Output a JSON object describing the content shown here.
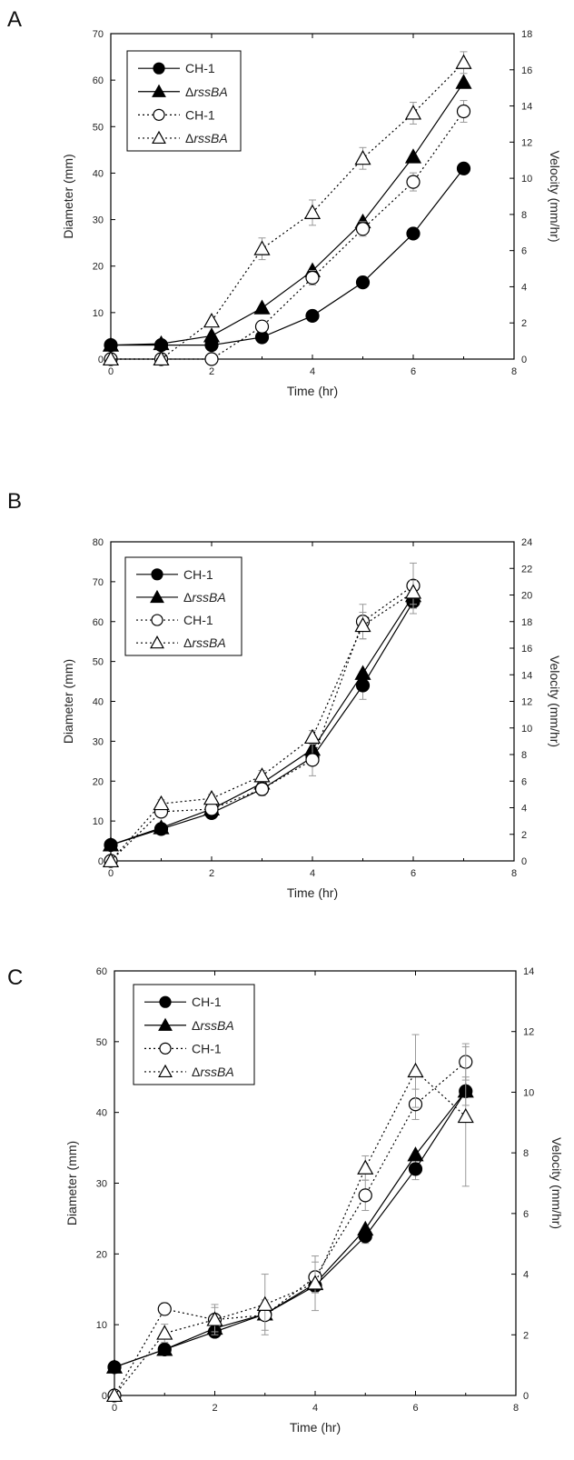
{
  "legend_entries": [
    {
      "label": "CH-1",
      "prefix": "",
      "italic": ""
    },
    {
      "label": "ΔrssBA",
      "prefix": "Δ",
      "italic": "rssBA"
    },
    {
      "label": "CH-1",
      "prefix": "",
      "italic": ""
    },
    {
      "label": "ΔrssBA",
      "prefix": "Δ",
      "italic": "rssBA"
    }
  ],
  "chart_data": [
    {
      "panel": "A",
      "type": "line",
      "xlabel": "Time (hr)",
      "ylabel": "Diameter (mm)",
      "y2label": "Velocity (mm/hr)",
      "xlim": [
        0,
        8
      ],
      "ylim": [
        0,
        70
      ],
      "y2lim": [
        0,
        18
      ],
      "xticks": [
        0,
        2,
        4,
        6,
        8
      ],
      "yticks": [
        0,
        10,
        20,
        30,
        40,
        50,
        60,
        70
      ],
      "y2ticks": [
        0,
        2,
        4,
        6,
        8,
        10,
        12,
        14,
        16,
        18
      ],
      "grid": false,
      "legend_position": "top-left",
      "series": [
        {
          "name": "CH-1",
          "axis": "left",
          "marker": "circle",
          "fill": "filled",
          "line": "solid",
          "x": [
            0,
            1,
            2,
            3,
            4,
            5,
            6,
            7
          ],
          "y": [
            3,
            3,
            3,
            4.7,
            9.3,
            16.5,
            27,
            41
          ]
        },
        {
          "name": "ΔrssBA",
          "axis": "left",
          "marker": "triangle",
          "fill": "filled",
          "line": "solid",
          "x": [
            0,
            1,
            2,
            3,
            4,
            5,
            6,
            7
          ],
          "y": [
            3,
            3.3,
            5,
            11,
            19,
            29.5,
            43.5,
            59.5
          ]
        },
        {
          "name": "CH-1",
          "axis": "right",
          "marker": "circle",
          "fill": "open",
          "line": "dotted",
          "x": [
            0,
            1,
            2,
            3,
            4,
            5,
            6,
            7
          ],
          "y": [
            0,
            0,
            0,
            1.8,
            4.5,
            7.2,
            9.8,
            13.7
          ],
          "err": [
            0,
            0,
            0,
            0.3,
            0.4,
            0.4,
            0.5,
            0.6
          ]
        },
        {
          "name": "ΔrssBA",
          "axis": "right",
          "marker": "triangle",
          "fill": "open",
          "line": "dotted",
          "x": [
            0,
            1,
            2,
            3,
            4,
            5,
            6,
            7
          ],
          "y": [
            0,
            0,
            2.1,
            6.1,
            8.1,
            11.1,
            13.6,
            16.4
          ],
          "err": [
            0,
            0,
            0,
            0.6,
            0.7,
            0.6,
            0.6,
            0.6
          ]
        }
      ]
    },
    {
      "panel": "B",
      "type": "line",
      "xlabel": "Time (hr)",
      "ylabel": "Diameter (mm)",
      "y2label": "Velocity (mm/hr)",
      "xlim": [
        0,
        8
      ],
      "ylim": [
        0,
        80
      ],
      "y2lim": [
        0,
        24
      ],
      "xticks": [
        0,
        2,
        4,
        6,
        8
      ],
      "yticks": [
        0,
        10,
        20,
        30,
        40,
        50,
        60,
        70,
        80
      ],
      "y2ticks": [
        0,
        2,
        4,
        6,
        8,
        10,
        12,
        14,
        16,
        18,
        20,
        22,
        24
      ],
      "grid": false,
      "legend_position": "top-left",
      "series": [
        {
          "name": "CH-1",
          "axis": "left",
          "marker": "circle",
          "fill": "filled",
          "line": "solid",
          "x": [
            0,
            1,
            2,
            3,
            4,
            5,
            6
          ],
          "y": [
            4,
            8,
            12,
            18,
            26,
            44,
            65
          ],
          "err": [
            0,
            0.5,
            0.6,
            1,
            1.5,
            3.5,
            3
          ]
        },
        {
          "name": "ΔrssBA",
          "axis": "left",
          "marker": "triangle",
          "fill": "filled",
          "line": "solid",
          "x": [
            0,
            1,
            2,
            3,
            4,
            5,
            6
          ],
          "y": [
            4,
            8.3,
            13,
            19.5,
            28,
            47,
            66.5
          ]
        },
        {
          "name": "CH-1",
          "axis": "right",
          "marker": "circle",
          "fill": "open",
          "line": "dotted",
          "x": [
            0,
            1,
            2,
            3,
            4,
            5,
            6
          ],
          "y": [
            0,
            3.7,
            3.9,
            5.4,
            7.6,
            18,
            20.7
          ],
          "err": [
            0,
            0.3,
            0.3,
            0.5,
            1.2,
            1.3,
            1.7
          ]
        },
        {
          "name": "ΔrssBA",
          "axis": "right",
          "marker": "triangle",
          "fill": "open",
          "line": "dotted",
          "x": [
            0,
            1,
            2,
            3,
            4,
            5,
            6
          ],
          "y": [
            0,
            4.3,
            4.7,
            6.4,
            9.3,
            17.7,
            20.2
          ],
          "err": [
            0,
            0.3,
            0.3,
            0.4,
            0.5,
            1,
            0.9
          ]
        }
      ]
    },
    {
      "panel": "C",
      "type": "line",
      "xlabel": "Time (hr)",
      "ylabel": "Diameter (mm)",
      "y2label": "Velocity (mm/hr)",
      "xlim": [
        0,
        8
      ],
      "ylim": [
        0,
        60
      ],
      "y2lim": [
        0,
        14
      ],
      "xticks": [
        0,
        2,
        4,
        6,
        8
      ],
      "yticks": [
        0,
        10,
        20,
        30,
        40,
        50,
        60
      ],
      "y2ticks": [
        0,
        2,
        4,
        6,
        8,
        10,
        12,
        14
      ],
      "grid": false,
      "legend_position": "top-left",
      "series": [
        {
          "name": "CH-1",
          "axis": "left",
          "marker": "circle",
          "fill": "filled",
          "line": "solid",
          "x": [
            0,
            1,
            2,
            3,
            4,
            5,
            6,
            7
          ],
          "y": [
            4,
            6.5,
            9,
            11.5,
            15.5,
            22.5,
            32,
            43
          ],
          "err": [
            0,
            0.5,
            0.5,
            0.6,
            1,
            1,
            1.5,
            2
          ]
        },
        {
          "name": "ΔrssBA",
          "axis": "left",
          "marker": "triangle",
          "fill": "filled",
          "line": "solid",
          "x": [
            0,
            1,
            2,
            3,
            4,
            5,
            6,
            7
          ],
          "y": [
            4,
            6.5,
            9.5,
            11.5,
            15.8,
            23.5,
            34,
            43
          ]
        },
        {
          "name": "CH-1",
          "axis": "right",
          "marker": "circle",
          "fill": "open",
          "line": "dotted",
          "x": [
            0,
            1,
            2,
            3,
            4,
            5,
            6,
            7
          ],
          "y": [
            0,
            2.85,
            2.5,
            2.65,
            3.9,
            6.6,
            9.6,
            11
          ],
          "err": [
            0,
            0.2,
            0.4,
            0.5,
            0.5,
            0.5,
            0.5,
            0.6
          ]
        },
        {
          "name": "ΔrssBA",
          "axis": "right",
          "marker": "triangle",
          "fill": "open",
          "line": "dotted",
          "x": [
            0,
            1,
            2,
            3,
            4,
            5,
            6,
            7
          ],
          "y": [
            0,
            2.05,
            2.5,
            3,
            3.7,
            7.5,
            10.7,
            9.2
          ],
          "err": [
            0,
            0.3,
            0.5,
            1,
            0.9,
            0.4,
            1.2,
            2.3
          ]
        }
      ]
    }
  ]
}
